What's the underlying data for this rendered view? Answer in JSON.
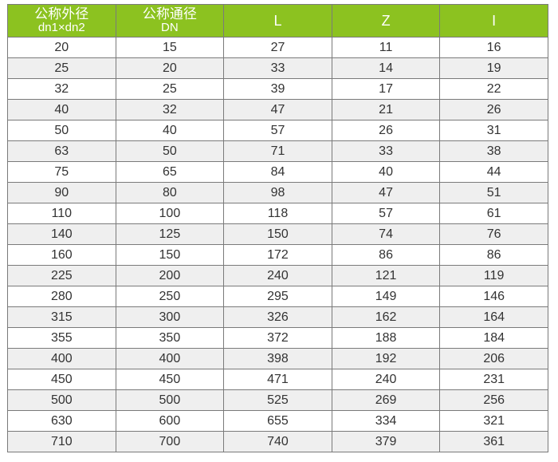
{
  "colors": {
    "header_bg": "#8cc220",
    "header_text": "#ffffff",
    "alt_row": "#efefef"
  },
  "headers": [
    {
      "line1": "公称外径",
      "line2": "dn1×dn2"
    },
    {
      "line1": "公称通径",
      "line2": "DN"
    },
    {
      "line1": "L",
      "line2": ""
    },
    {
      "line1": "Z",
      "line2": ""
    },
    {
      "line1": "I",
      "line2": ""
    }
  ],
  "rows": [
    [
      "20",
      "15",
      "27",
      "11",
      "16"
    ],
    [
      "25",
      "20",
      "33",
      "14",
      "19"
    ],
    [
      "32",
      "25",
      "39",
      "17",
      "22"
    ],
    [
      "40",
      "32",
      "47",
      "21",
      "26"
    ],
    [
      "50",
      "40",
      "57",
      "26",
      "31"
    ],
    [
      "63",
      "50",
      "71",
      "33",
      "38"
    ],
    [
      "75",
      "65",
      "84",
      "40",
      "44"
    ],
    [
      "90",
      "80",
      "98",
      "47",
      "51"
    ],
    [
      "110",
      "100",
      "118",
      "57",
      "61"
    ],
    [
      "140",
      "125",
      "150",
      "74",
      "76"
    ],
    [
      "160",
      "150",
      "172",
      "86",
      "86"
    ],
    [
      "225",
      "200",
      "240",
      "121",
      "119"
    ],
    [
      "280",
      "250",
      "295",
      "149",
      "146"
    ],
    [
      "315",
      "300",
      "326",
      "162",
      "164"
    ],
    [
      "355",
      "350",
      "372",
      "188",
      "184"
    ],
    [
      "400",
      "400",
      "398",
      "192",
      "206"
    ],
    [
      "450",
      "450",
      "471",
      "240",
      "231"
    ],
    [
      "500",
      "500",
      "525",
      "269",
      "256"
    ],
    [
      "630",
      "600",
      "655",
      "334",
      "321"
    ],
    [
      "710",
      "700",
      "740",
      "379",
      "361"
    ]
  ]
}
